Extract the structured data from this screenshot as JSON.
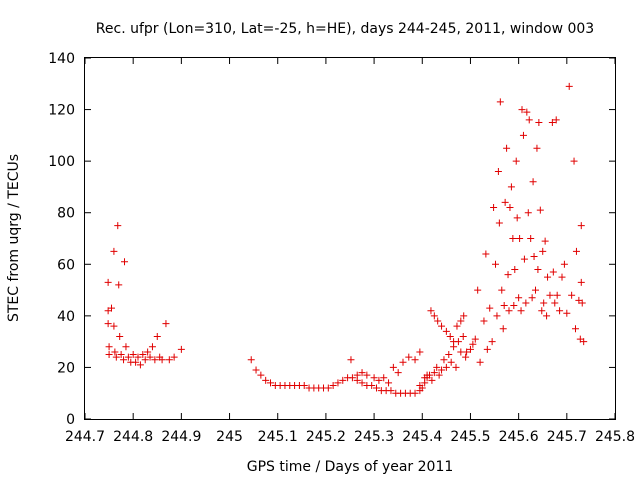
{
  "chart_data": {
    "type": "scatter",
    "title": "Rec. ufpr (Lon=310, Lat=-25, h=HE), days 244-245, 2011, window 003",
    "xlabel": "GPS time / Days of year 2011",
    "ylabel": "STEC from uqrg / TECUs",
    "xlim": [
      244.7,
      245.8
    ],
    "ylim": [
      0,
      140
    ],
    "xticks": [
      "244.7",
      "244.8",
      "244.9",
      "245",
      "245.1",
      "245.2",
      "245.3",
      "245.4",
      "245.5",
      "245.6",
      "245.7",
      "245.8"
    ],
    "yticks": [
      "0",
      "20",
      "40",
      "60",
      "80",
      "100",
      "120",
      "140"
    ],
    "grid": false,
    "marker": "plus",
    "color": "#e00000",
    "points": [
      [
        244.748,
        53
      ],
      [
        244.748,
        42
      ],
      [
        244.748,
        37
      ],
      [
        244.75,
        28
      ],
      [
        244.75,
        25
      ],
      [
        244.755,
        43
      ],
      [
        244.76,
        65
      ],
      [
        244.76,
        36
      ],
      [
        244.762,
        26
      ],
      [
        244.765,
        24
      ],
      [
        244.768,
        75
      ],
      [
        244.77,
        52
      ],
      [
        244.772,
        32
      ],
      [
        244.775,
        25
      ],
      [
        244.78,
        23
      ],
      [
        244.782,
        61
      ],
      [
        244.785,
        28
      ],
      [
        244.79,
        24
      ],
      [
        244.795,
        22
      ],
      [
        244.8,
        25
      ],
      [
        244.805,
        22
      ],
      [
        244.81,
        24
      ],
      [
        244.815,
        21
      ],
      [
        244.82,
        25
      ],
      [
        244.825,
        23
      ],
      [
        244.83,
        26
      ],
      [
        244.835,
        24
      ],
      [
        244.84,
        28
      ],
      [
        244.845,
        23
      ],
      [
        244.85,
        32
      ],
      [
        244.855,
        24
      ],
      [
        244.86,
        23
      ],
      [
        244.868,
        37
      ],
      [
        244.875,
        23
      ],
      [
        244.885,
        24
      ],
      [
        244.9,
        27
      ],
      [
        245.045,
        23
      ],
      [
        245.055,
        19
      ],
      [
        245.065,
        17
      ],
      [
        245.075,
        15
      ],
      [
        245.085,
        14
      ],
      [
        245.095,
        13
      ],
      [
        245.105,
        13
      ],
      [
        245.115,
        13
      ],
      [
        245.125,
        13
      ],
      [
        245.135,
        13
      ],
      [
        245.145,
        13
      ],
      [
        245.155,
        13
      ],
      [
        245.165,
        12
      ],
      [
        245.175,
        12
      ],
      [
        245.185,
        12
      ],
      [
        245.195,
        12
      ],
      [
        245.205,
        12
      ],
      [
        245.215,
        13
      ],
      [
        245.225,
        14
      ],
      [
        245.235,
        15
      ],
      [
        245.245,
        16
      ],
      [
        245.255,
        16
      ],
      [
        245.265,
        15
      ],
      [
        245.275,
        14
      ],
      [
        245.285,
        13
      ],
      [
        245.295,
        13
      ],
      [
        245.305,
        12
      ],
      [
        245.315,
        11
      ],
      [
        245.325,
        11
      ],
      [
        245.335,
        11
      ],
      [
        245.345,
        10
      ],
      [
        245.355,
        10
      ],
      [
        245.365,
        10
      ],
      [
        245.375,
        10
      ],
      [
        245.385,
        10
      ],
      [
        245.395,
        11
      ],
      [
        245.252,
        23
      ],
      [
        245.265,
        17
      ],
      [
        245.275,
        18
      ],
      [
        245.285,
        17
      ],
      [
        245.3,
        16
      ],
      [
        245.31,
        15
      ],
      [
        245.32,
        16
      ],
      [
        245.33,
        14
      ],
      [
        245.34,
        20
      ],
      [
        245.35,
        18
      ],
      [
        245.36,
        22
      ],
      [
        245.372,
        24
      ],
      [
        245.385,
        23
      ],
      [
        245.395,
        26
      ],
      [
        245.395,
        13
      ],
      [
        245.4,
        12
      ],
      [
        245.405,
        14
      ],
      [
        245.41,
        16
      ],
      [
        245.415,
        17
      ],
      [
        245.42,
        15
      ],
      [
        245.425,
        18
      ],
      [
        245.43,
        20
      ],
      [
        245.435,
        17
      ],
      [
        245.44,
        19
      ],
      [
        245.445,
        23
      ],
      [
        245.45,
        20
      ],
      [
        245.455,
        25
      ],
      [
        245.46,
        22
      ],
      [
        245.465,
        28
      ],
      [
        245.47,
        20
      ],
      [
        245.475,
        30
      ],
      [
        245.48,
        26
      ],
      [
        245.485,
        32
      ],
      [
        245.49,
        24
      ],
      [
        245.405,
        16
      ],
      [
        245.41,
        17
      ],
      [
        245.418,
        42
      ],
      [
        245.425,
        40
      ],
      [
        245.432,
        38
      ],
      [
        245.44,
        36
      ],
      [
        245.45,
        34
      ],
      [
        245.458,
        32
      ],
      [
        245.465,
        30
      ],
      [
        245.472,
        36
      ],
      [
        245.48,
        38
      ],
      [
        245.486,
        40
      ],
      [
        245.492,
        26
      ],
      [
        245.5,
        27
      ],
      [
        245.505,
        29
      ],
      [
        245.51,
        31
      ],
      [
        245.515,
        50
      ],
      [
        245.52,
        22
      ],
      [
        245.528,
        38
      ],
      [
        245.532,
        64
      ],
      [
        245.535,
        27
      ],
      [
        245.54,
        43
      ],
      [
        245.545,
        30
      ],
      [
        245.548,
        82
      ],
      [
        245.552,
        60
      ],
      [
        245.555,
        40
      ],
      [
        245.558,
        96
      ],
      [
        245.56,
        76
      ],
      [
        245.562,
        123
      ],
      [
        245.565,
        50
      ],
      [
        245.568,
        35
      ],
      [
        245.57,
        44
      ],
      [
        245.572,
        84
      ],
      [
        245.575,
        105
      ],
      [
        245.578,
        56
      ],
      [
        245.58,
        42
      ],
      [
        245.582,
        82
      ],
      [
        245.585,
        90
      ],
      [
        245.588,
        70
      ],
      [
        245.59,
        44
      ],
      [
        245.592,
        58
      ],
      [
        245.595,
        100
      ],
      [
        245.597,
        78
      ],
      [
        245.6,
        47
      ],
      [
        245.602,
        70
      ],
      [
        245.605,
        42
      ],
      [
        245.607,
        120
      ],
      [
        245.61,
        110
      ],
      [
        245.612,
        62
      ],
      [
        245.615,
        45
      ],
      [
        245.617,
        119
      ],
      [
        245.62,
        80
      ],
      [
        245.622,
        116
      ],
      [
        245.625,
        70
      ],
      [
        245.628,
        47
      ],
      [
        245.63,
        92
      ],
      [
        245.632,
        63
      ],
      [
        245.635,
        50
      ],
      [
        245.638,
        105
      ],
      [
        245.64,
        58
      ],
      [
        245.642,
        115
      ],
      [
        245.645,
        81
      ],
      [
        245.648,
        42
      ],
      [
        245.65,
        65
      ],
      [
        245.652,
        45
      ],
      [
        245.655,
        69
      ],
      [
        245.658,
        40
      ],
      [
        245.66,
        55
      ],
      [
        245.665,
        48
      ],
      [
        245.67,
        115
      ],
      [
        245.672,
        57
      ],
      [
        245.675,
        45
      ],
      [
        245.678,
        116
      ],
      [
        245.68,
        48
      ],
      [
        245.685,
        42
      ],
      [
        245.69,
        55
      ],
      [
        245.695,
        60
      ],
      [
        245.7,
        41
      ],
      [
        245.705,
        129
      ],
      [
        245.71,
        48
      ],
      [
        245.715,
        100
      ],
      [
        245.718,
        35
      ],
      [
        245.72,
        65
      ],
      [
        245.725,
        46
      ],
      [
        245.728,
        31
      ],
      [
        245.73,
        75
      ],
      [
        245.73,
        53
      ],
      [
        245.732,
        45
      ],
      [
        245.735,
        30
      ]
    ]
  }
}
